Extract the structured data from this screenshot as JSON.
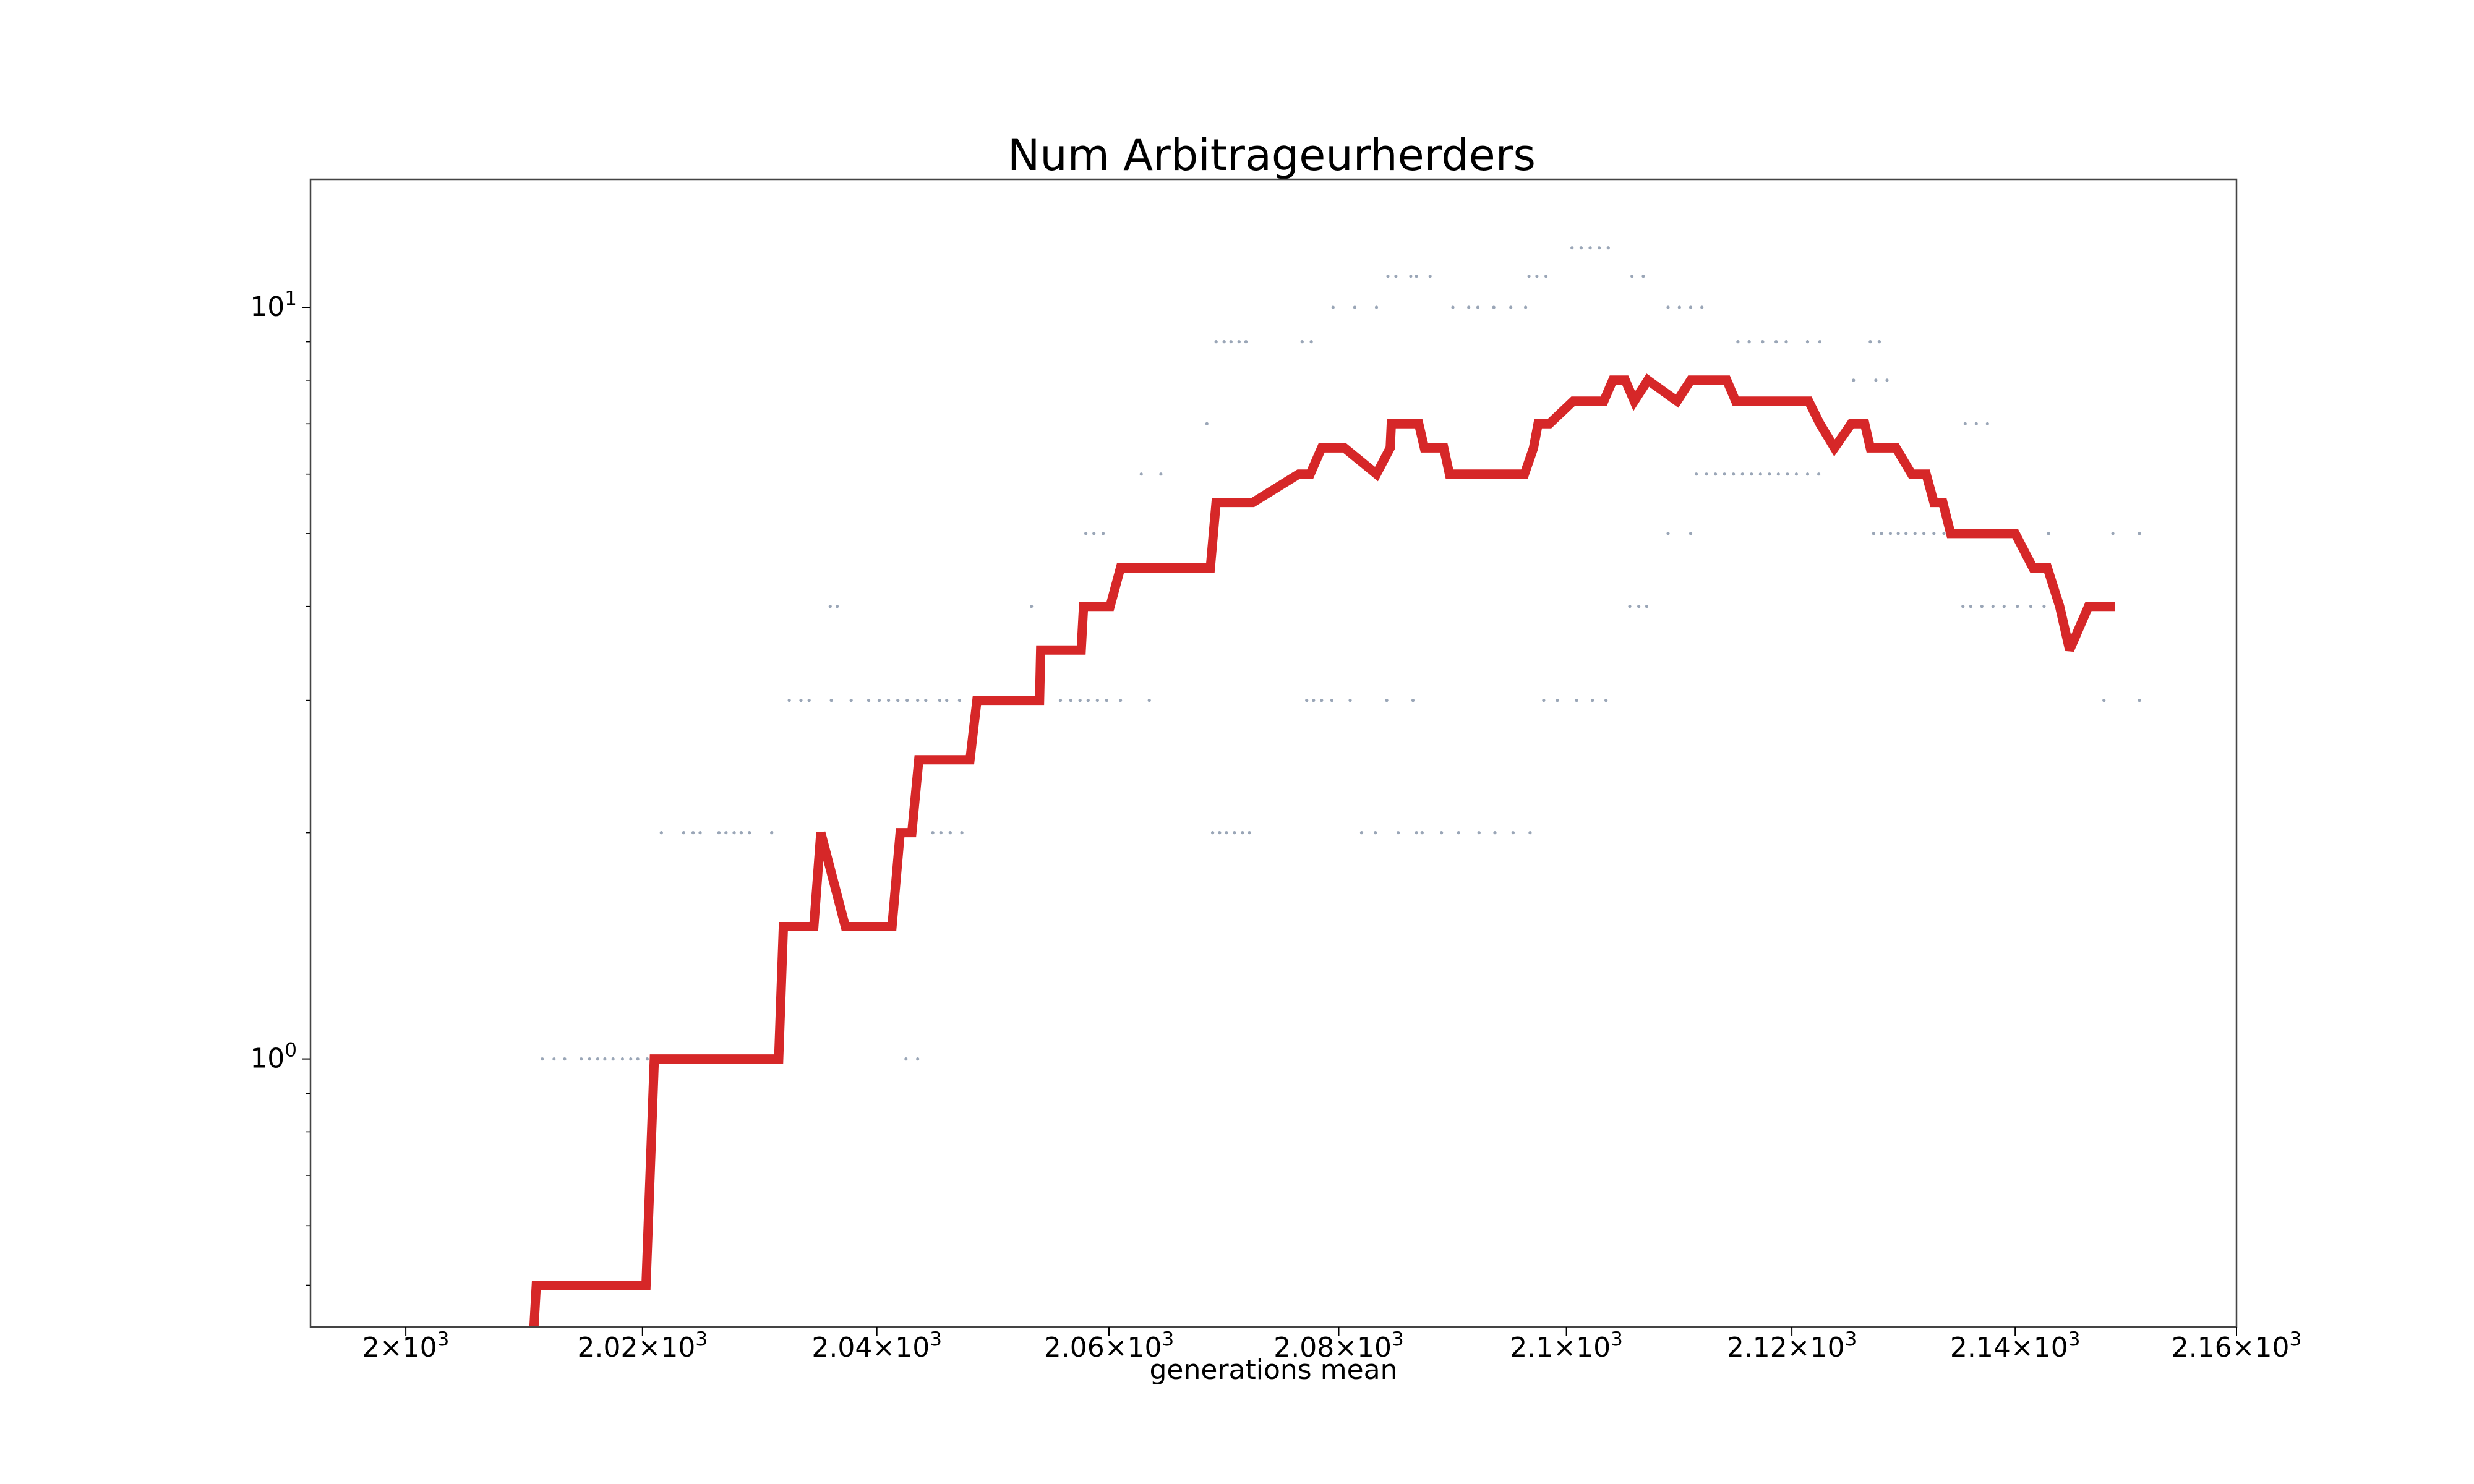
{
  "chart_data": {
    "type": "line",
    "title": "Num Arbitrageurherders",
    "xlabel": "generations mean",
    "ylabel": "",
    "x_scale": "log",
    "y_scale": "log",
    "xlim": [
      1992,
      2160
    ],
    "ylim": [
      0.44,
      14.8
    ],
    "grid": false,
    "legend": "none",
    "x_ticks": [
      {
        "value": 2000,
        "mant": "2",
        "exp": "3"
      },
      {
        "value": 2020,
        "mant": "2.02",
        "exp": "3"
      },
      {
        "value": 2040,
        "mant": "2.04",
        "exp": "3"
      },
      {
        "value": 2060,
        "mant": "2.06",
        "exp": "3"
      },
      {
        "value": 2080,
        "mant": "2.08",
        "exp": "3"
      },
      {
        "value": 2100,
        "mant": "2.1",
        "exp": "3"
      },
      {
        "value": 2120,
        "mant": "2.12",
        "exp": "3"
      },
      {
        "value": 2140,
        "mant": "2.14",
        "exp": "3"
      },
      {
        "value": 2160,
        "mant": "2.16",
        "exp": "3"
      }
    ],
    "y_ticks": [
      {
        "value": 1,
        "mant": "10",
        "exp": "0"
      },
      {
        "value": 10,
        "mant": "10",
        "exp": "1"
      }
    ],
    "y_minor_ticks": [
      0.5,
      0.6,
      0.7,
      0.8,
      0.9,
      2,
      3,
      4,
      5,
      6,
      7,
      8,
      9
    ],
    "series": [
      {
        "color": "#d62728",
        "points": [
          [
            2010.8,
            0.44
          ],
          [
            2011.0,
            0.5
          ],
          [
            2020.3,
            0.5
          ],
          [
            2021.0,
            1.0
          ],
          [
            2031.6,
            1.0
          ],
          [
            2032.0,
            1.5
          ],
          [
            2034.6,
            1.5
          ],
          [
            2035.2,
            2.0
          ],
          [
            2037.3,
            1.5
          ],
          [
            2041.3,
            1.5
          ],
          [
            2042.0,
            2.0
          ],
          [
            2043.0,
            2.0
          ],
          [
            2043.6,
            2.5
          ],
          [
            2048.0,
            2.5
          ],
          [
            2048.6,
            3.0
          ],
          [
            2054.0,
            3.0
          ],
          [
            2054.1,
            3.5
          ],
          [
            2057.6,
            3.5
          ],
          [
            2057.8,
            4.0
          ],
          [
            2060.1,
            4.0
          ],
          [
            2061.0,
            4.5
          ],
          [
            2068.8,
            4.5
          ],
          [
            2069.3,
            5.5
          ],
          [
            2072.5,
            5.5
          ],
          [
            2076.5,
            6.0
          ],
          [
            2077.5,
            6.0
          ],
          [
            2078.5,
            6.5
          ],
          [
            2080.5,
            6.5
          ],
          [
            2083.3,
            6.0
          ],
          [
            2084.5,
            6.5
          ],
          [
            2084.6,
            7.0
          ],
          [
            2087.0,
            7.0
          ],
          [
            2087.5,
            6.5
          ],
          [
            2089.2,
            6.5
          ],
          [
            2089.7,
            6.0
          ],
          [
            2096.3,
            6.0
          ],
          [
            2097.1,
            6.5
          ],
          [
            2097.5,
            7.0
          ],
          [
            2098.5,
            7.0
          ],
          [
            2100.6,
            7.5
          ],
          [
            2103.3,
            7.5
          ],
          [
            2104.1,
            8.0
          ],
          [
            2105.2,
            8.0
          ],
          [
            2106.0,
            7.5
          ],
          [
            2107.2,
            8.0
          ],
          [
            2109.8,
            7.5
          ],
          [
            2111.0,
            8.0
          ],
          [
            2114.2,
            8.0
          ],
          [
            2115.0,
            7.5
          ],
          [
            2121.5,
            7.5
          ],
          [
            2122.5,
            7.0
          ],
          [
            2123.8,
            6.5
          ],
          [
            2125.3,
            7.0
          ],
          [
            2126.5,
            7.0
          ],
          [
            2127.0,
            6.5
          ],
          [
            2129.3,
            6.5
          ],
          [
            2130.7,
            6.0
          ],
          [
            2132.0,
            6.0
          ],
          [
            2132.7,
            5.5
          ],
          [
            2133.5,
            5.5
          ],
          [
            2134.2,
            5.0
          ],
          [
            2140.0,
            5.0
          ],
          [
            2141.6,
            4.5
          ],
          [
            2142.9,
            4.5
          ],
          [
            2144.0,
            4.0
          ],
          [
            2144.9,
            3.5
          ],
          [
            2146.6,
            4.0
          ],
          [
            2149.0,
            4.0
          ]
        ]
      }
    ],
    "scatter": {
      "color": "#1f3a5f",
      "points": [
        [
          2011.5,
          1
        ],
        [
          2012.5,
          1
        ],
        [
          2013.4,
          1
        ],
        [
          2014.8,
          1
        ],
        [
          2015.5,
          1
        ],
        [
          2016.2,
          1
        ],
        [
          2016.8,
          1
        ],
        [
          2017.5,
          1
        ],
        [
          2018.3,
          1
        ],
        [
          2019.0,
          1
        ],
        [
          2019.6,
          1
        ],
        [
          2020.4,
          1
        ],
        [
          2042.5,
          1
        ],
        [
          2043.5,
          1
        ],
        [
          2021.6,
          2
        ],
        [
          2023.5,
          2
        ],
        [
          2024.3,
          2
        ],
        [
          2024.9,
          2
        ],
        [
          2026.5,
          2
        ],
        [
          2027.1,
          2
        ],
        [
          2027.8,
          2
        ],
        [
          2028.4,
          2
        ],
        [
          2029.1,
          2
        ],
        [
          2031.0,
          2
        ],
        [
          2044.8,
          2
        ],
        [
          2045.5,
          2
        ],
        [
          2046.3,
          2
        ],
        [
          2047.3,
          2
        ],
        [
          2069.0,
          2
        ],
        [
          2069.6,
          2
        ],
        [
          2070.2,
          2
        ],
        [
          2070.9,
          2
        ],
        [
          2071.6,
          2
        ],
        [
          2072.2,
          2
        ],
        [
          2082.0,
          2
        ],
        [
          2083.2,
          2
        ],
        [
          2085.2,
          2
        ],
        [
          2086.8,
          2
        ],
        [
          2087.3,
          2
        ],
        [
          2089.0,
          2
        ],
        [
          2090.5,
          2
        ],
        [
          2092.3,
          2
        ],
        [
          2093.7,
          2
        ],
        [
          2095.3,
          2
        ],
        [
          2096.8,
          2
        ],
        [
          2032.5,
          3
        ],
        [
          2033.5,
          3
        ],
        [
          2034.2,
          3
        ],
        [
          2036.1,
          3
        ],
        [
          2037.8,
          3
        ],
        [
          2039.3,
          3
        ],
        [
          2040.2,
          3
        ],
        [
          2041.0,
          3
        ],
        [
          2041.8,
          3
        ],
        [
          2042.6,
          3
        ],
        [
          2043.5,
          3
        ],
        [
          2044.2,
          3
        ],
        [
          2045.4,
          3
        ],
        [
          2046.0,
          3
        ],
        [
          2047.1,
          3
        ],
        [
          2048.5,
          3
        ],
        [
          2055.8,
          3
        ],
        [
          2056.7,
          3
        ],
        [
          2057.5,
          3
        ],
        [
          2058.2,
          3
        ],
        [
          2059.0,
          3
        ],
        [
          2059.8,
          3
        ],
        [
          2061.0,
          3
        ],
        [
          2063.5,
          3
        ],
        [
          2077.2,
          3
        ],
        [
          2077.8,
          3
        ],
        [
          2078.5,
          3
        ],
        [
          2079.4,
          3
        ],
        [
          2081.0,
          3
        ],
        [
          2084.2,
          3
        ],
        [
          2086.5,
          3
        ],
        [
          2098.0,
          3
        ],
        [
          2099.2,
          3
        ],
        [
          2100.9,
          3
        ],
        [
          2102.3,
          3
        ],
        [
          2103.5,
          3
        ],
        [
          2148.0,
          3
        ],
        [
          2151.2,
          3
        ],
        [
          2036.0,
          4
        ],
        [
          2036.6,
          4
        ],
        [
          2053.3,
          4
        ],
        [
          2105.6,
          4
        ],
        [
          2106.4,
          4
        ],
        [
          2107.1,
          4
        ],
        [
          2135.3,
          4
        ],
        [
          2136.0,
          4
        ],
        [
          2137.0,
          4
        ],
        [
          2138.0,
          4
        ],
        [
          2139.0,
          4
        ],
        [
          2140.2,
          4
        ],
        [
          2141.4,
          4
        ],
        [
          2142.6,
          4
        ],
        [
          2143.8,
          4
        ],
        [
          2058.0,
          5
        ],
        [
          2058.7,
          5
        ],
        [
          2059.5,
          5
        ],
        [
          2109.0,
          5
        ],
        [
          2111.0,
          5
        ],
        [
          2127.3,
          5
        ],
        [
          2128.0,
          5
        ],
        [
          2128.8,
          5
        ],
        [
          2129.5,
          5
        ],
        [
          2130.2,
          5
        ],
        [
          2131.0,
          5
        ],
        [
          2131.8,
          5
        ],
        [
          2132.7,
          5
        ],
        [
          2133.6,
          5
        ],
        [
          2134.5,
          5
        ],
        [
          2143.0,
          5
        ],
        [
          2148.8,
          5
        ],
        [
          2151.2,
          5
        ],
        [
          2062.8,
          6
        ],
        [
          2064.5,
          6
        ],
        [
          2111.5,
          6
        ],
        [
          2112.4,
          6
        ],
        [
          2113.2,
          6
        ],
        [
          2114.0,
          6
        ],
        [
          2114.8,
          6
        ],
        [
          2115.6,
          6
        ],
        [
          2116.4,
          6
        ],
        [
          2117.2,
          6
        ],
        [
          2118.0,
          6
        ],
        [
          2118.8,
          6
        ],
        [
          2119.6,
          6
        ],
        [
          2120.4,
          6
        ],
        [
          2121.4,
          6
        ],
        [
          2122.4,
          6
        ],
        [
          2068.5,
          7
        ],
        [
          2135.5,
          7
        ],
        [
          2136.5,
          7
        ],
        [
          2137.5,
          7
        ],
        [
          2125.5,
          8
        ],
        [
          2127.5,
          8
        ],
        [
          2128.5,
          8
        ],
        [
          2069.3,
          9
        ],
        [
          2070.0,
          9
        ],
        [
          2070.6,
          9
        ],
        [
          2071.3,
          9
        ],
        [
          2071.9,
          9
        ],
        [
          2076.8,
          9
        ],
        [
          2077.6,
          9
        ],
        [
          2115.2,
          9
        ],
        [
          2116.2,
          9
        ],
        [
          2117.4,
          9
        ],
        [
          2118.6,
          9
        ],
        [
          2119.5,
          9
        ],
        [
          2121.4,
          9
        ],
        [
          2122.5,
          9
        ],
        [
          2127.0,
          9
        ],
        [
          2127.8,
          9
        ],
        [
          2079.5,
          10
        ],
        [
          2081.4,
          10
        ],
        [
          2083.3,
          10
        ],
        [
          2090.0,
          10
        ],
        [
          2091.4,
          10
        ],
        [
          2092.2,
          10
        ],
        [
          2093.6,
          10
        ],
        [
          2095.1,
          10
        ],
        [
          2096.4,
          10
        ],
        [
          2109.0,
          10
        ],
        [
          2110.0,
          10
        ],
        [
          2111.0,
          10
        ],
        [
          2112.0,
          10
        ],
        [
          2084.3,
          11
        ],
        [
          2085.0,
          11
        ],
        [
          2086.3,
          11
        ],
        [
          2086.8,
          11
        ],
        [
          2088.0,
          11
        ],
        [
          2096.7,
          11
        ],
        [
          2097.4,
          11
        ],
        [
          2098.2,
          11
        ],
        [
          2105.8,
          11
        ],
        [
          2106.8,
          11
        ],
        [
          2100.5,
          12
        ],
        [
          2101.3,
          12
        ],
        [
          2102.1,
          12
        ],
        [
          2102.9,
          12
        ],
        [
          2103.7,
          12
        ]
      ]
    }
  }
}
